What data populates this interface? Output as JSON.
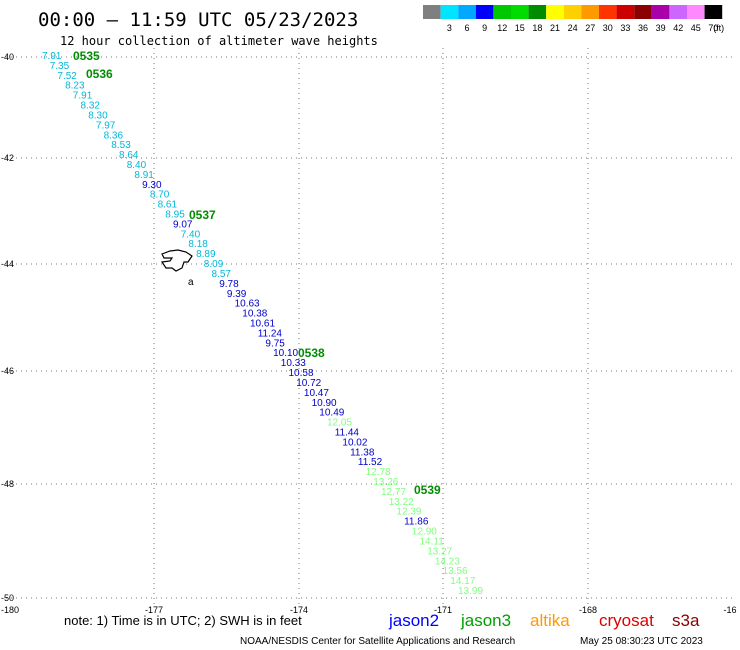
{
  "header": {
    "title": "00:00 — 11:59 UTC 05/23/2023",
    "subtitle": "12 hour collection of altimeter wave heights"
  },
  "legend": {
    "unit": "(ft)",
    "bins": [
      {
        "label": "",
        "color": "#7f7f7f"
      },
      {
        "label": "3",
        "color": "#00e5ff"
      },
      {
        "label": "6",
        "color": "#00a8ff"
      },
      {
        "label": "9",
        "color": "#0000ff"
      },
      {
        "label": "12",
        "color": "#00c800"
      },
      {
        "label": "15",
        "color": "#00dc00"
      },
      {
        "label": "18",
        "color": "#008c00"
      },
      {
        "label": "21",
        "color": "#ffff00"
      },
      {
        "label": "24",
        "color": "#ffd000"
      },
      {
        "label": "27",
        "color": "#ff9900"
      },
      {
        "label": "30",
        "color": "#ff3300"
      },
      {
        "label": "33",
        "color": "#cc0000"
      },
      {
        "label": "36",
        "color": "#8b0000"
      },
      {
        "label": "39",
        "color": "#aa00aa"
      },
      {
        "label": "42",
        "color": "#cc66ff"
      },
      {
        "label": "45",
        "color": "#ff88ff"
      },
      {
        "label": "70",
        "color": "#000000"
      }
    ]
  },
  "axes": {
    "lon_ticks": [
      "-180",
      "-177",
      "-174",
      "-171",
      "-168",
      "-16"
    ],
    "lat_ticks": [
      "-40",
      "-42",
      "-44",
      "-46",
      "-48",
      "-50"
    ]
  },
  "time_labels": [
    "0535",
    "0536",
    "0537",
    "0538",
    "0539"
  ],
  "island_label": "a",
  "wave_heights": [
    {
      "value": "7.91",
      "color": "#00b8d8"
    },
    {
      "value": "7.35",
      "color": "#00b8d8"
    },
    {
      "value": "7.52",
      "color": "#00b8d8"
    },
    {
      "value": "8.23",
      "color": "#00b8d8"
    },
    {
      "value": "7.91",
      "color": "#00b8d8"
    },
    {
      "value": "8.32",
      "color": "#00b8d8"
    },
    {
      "value": "8.30",
      "color": "#00b8d8"
    },
    {
      "value": "7.97",
      "color": "#00b8d8"
    },
    {
      "value": "8.36",
      "color": "#00b8d8"
    },
    {
      "value": "8.53",
      "color": "#00b8d8"
    },
    {
      "value": "8.64",
      "color": "#00b8d8"
    },
    {
      "value": "8.40",
      "color": "#00b8d8"
    },
    {
      "value": "8.91",
      "color": "#00b8d8"
    },
    {
      "value": "9.30",
      "color": "#0000cc"
    },
    {
      "value": "8.70",
      "color": "#00b8d8"
    },
    {
      "value": "8.61",
      "color": "#00b8d8"
    },
    {
      "value": "8.95",
      "color": "#00b8d8"
    },
    {
      "value": "9.07",
      "color": "#0000cc"
    },
    {
      "value": "7.40",
      "color": "#00b8d8"
    },
    {
      "value": "8.18",
      "color": "#00b8d8"
    },
    {
      "value": "8.89",
      "color": "#00b8d8"
    },
    {
      "value": "8.09",
      "color": "#00b8d8"
    },
    {
      "value": "8.57",
      "color": "#00b8d8"
    },
    {
      "value": "9.78",
      "color": "#0000cc"
    },
    {
      "value": "9.39",
      "color": "#0000cc"
    },
    {
      "value": "10.63",
      "color": "#0000cc"
    },
    {
      "value": "10.38",
      "color": "#0000cc"
    },
    {
      "value": "10.61",
      "color": "#0000cc"
    },
    {
      "value": "11.24",
      "color": "#0000cc"
    },
    {
      "value": "9.75",
      "color": "#0000cc"
    },
    {
      "value": "10.10",
      "color": "#0000cc"
    },
    {
      "value": "10.33",
      "color": "#0000cc"
    },
    {
      "value": "10.58",
      "color": "#0000cc"
    },
    {
      "value": "10.72",
      "color": "#0000cc"
    },
    {
      "value": "10.47",
      "color": "#0000cc"
    },
    {
      "value": "10.90",
      "color": "#0000cc"
    },
    {
      "value": "10.49",
      "color": "#0000cc"
    },
    {
      "value": "12.05",
      "color": "#80ff80"
    },
    {
      "value": "11.44",
      "color": "#0000cc"
    },
    {
      "value": "10.02",
      "color": "#0000cc"
    },
    {
      "value": "11.38",
      "color": "#0000cc"
    },
    {
      "value": "11.52",
      "color": "#0000cc"
    },
    {
      "value": "12.78",
      "color": "#80ff80"
    },
    {
      "value": "13.26",
      "color": "#80ff80"
    },
    {
      "value": "12.77",
      "color": "#80ff80"
    },
    {
      "value": "13.22",
      "color": "#80ff80"
    },
    {
      "value": "12.39",
      "color": "#80ff80"
    },
    {
      "value": "11.86",
      "color": "#0000cc"
    },
    {
      "value": "12.90",
      "color": "#80ff80"
    },
    {
      "value": "14.11",
      "color": "#80ff80"
    },
    {
      "value": "13.27",
      "color": "#80ff80"
    },
    {
      "value": "14.23",
      "color": "#80ff80"
    },
    {
      "value": "13.56",
      "color": "#80ff80"
    },
    {
      "value": "14.17",
      "color": "#80ff80"
    },
    {
      "value": "13.99",
      "color": "#80ff80"
    }
  ],
  "footer": {
    "note": "note: 1) Time is in UTC; 2) SWH is in feet",
    "satellites": [
      {
        "name": "jason2",
        "color": "#0000ff"
      },
      {
        "name": "jason3",
        "color": "#00a000"
      },
      {
        "name": "altika",
        "color": "#ff9900"
      },
      {
        "name": "cryosat",
        "color": "#dd0000"
      },
      {
        "name": "s3a",
        "color": "#8b0000"
      }
    ],
    "credit": "NOAA/NESDIS Center for Satellite Applications and Research",
    "timestamp": "May 25 08:30:23 UTC 2023"
  }
}
